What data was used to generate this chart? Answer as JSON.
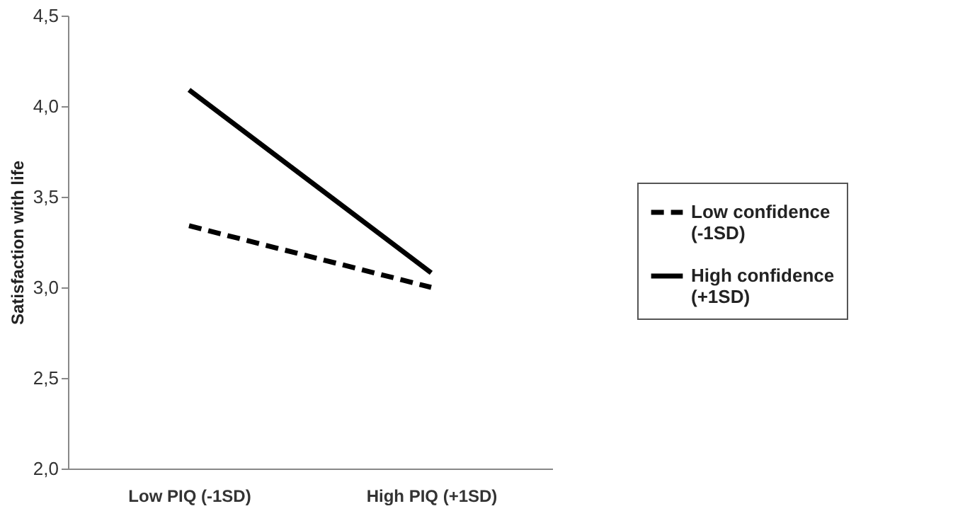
{
  "chart_data": {
    "type": "line",
    "ylabel": "Satisfaction with life",
    "categories": [
      "Low PIQ (-1SD)",
      "High PIQ (+1SD)"
    ],
    "series": [
      {
        "name": "Low confidence (-1SD)",
        "color": "#000000",
        "line_style": "dashed",
        "values": [
          3.34,
          3.0
        ]
      },
      {
        "name": "High confidence (+1SD)",
        "color": "#000000",
        "line_style": "solid",
        "values": [
          4.09,
          3.08
        ]
      }
    ],
    "ylim": [
      2.0,
      4.5
    ],
    "yticks": [
      {
        "value": 2.0,
        "label": "2,0"
      },
      {
        "value": 2.5,
        "label": "2,5"
      },
      {
        "value": 3.0,
        "label": "3,0"
      },
      {
        "value": 3.5,
        "label": "3,5"
      },
      {
        "value": 4.0,
        "label": "4,0"
      },
      {
        "value": 4.5,
        "label": "4,5"
      }
    ],
    "grid": false,
    "legend": "right",
    "marker": "none"
  }
}
